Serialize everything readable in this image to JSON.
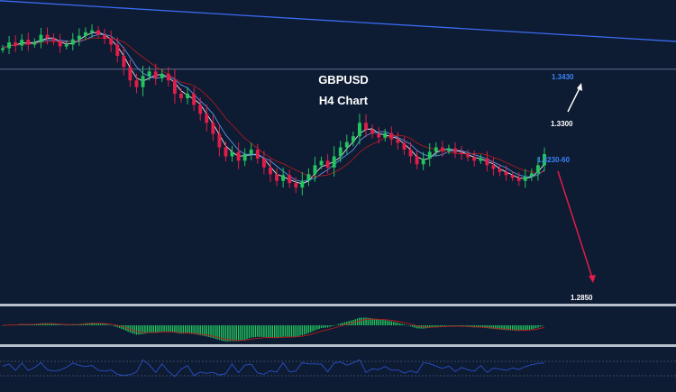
{
  "chart_data": {
    "type": "candlestick",
    "title": "GBPUSD",
    "subtitle": "H4 Chart",
    "colors": {
      "background": "#0d1b33",
      "bull": "#22c55e",
      "bear": "#e11d48",
      "trendline": "#3b6cf0",
      "level_line": "#6b7a94",
      "target_label_blue": "#3b82f6",
      "target_label_white": "#ffffff",
      "arrow_up": "#ffffff",
      "arrow_down": "#e11d48",
      "ma_fast": "#ffffff",
      "ma_mid": "#60a5fa",
      "ma_slow": "#b91c1c",
      "panel_separator": "#b8bfcc",
      "rsi_line": "#2b4fc9"
    },
    "price_axis": {
      "min": 1.28,
      "max": 1.348
    },
    "closes": [
      1.3372,
      1.3385,
      1.3378,
      1.3391,
      1.338,
      1.3386,
      1.3402,
      1.3395,
      1.3388,
      1.3376,
      1.338,
      1.3392,
      1.34,
      1.3408,
      1.3412,
      1.3402,
      1.3393,
      1.338,
      1.3355,
      1.333,
      1.33,
      1.3285,
      1.331,
      1.332,
      1.3305,
      1.3315,
      1.33,
      1.327,
      1.326,
      1.327,
      1.3245,
      1.3225,
      1.3205,
      1.318,
      1.315,
      1.313,
      1.314,
      1.312,
      1.3135,
      1.3145,
      1.3125,
      1.3105,
      1.309,
      1.3075,
      1.3088,
      1.307,
      1.306,
      1.3075,
      1.309,
      1.311,
      1.312,
      1.3105,
      1.313,
      1.315,
      1.3162,
      1.3175,
      1.3205,
      1.319,
      1.318,
      1.3172,
      1.3182,
      1.3168,
      1.316,
      1.3145,
      1.313,
      1.3112,
      1.3125,
      1.314,
      1.315,
      1.3142,
      1.3148,
      1.3138,
      1.3135,
      1.3128,
      1.312,
      1.3126,
      1.311,
      1.3102,
      1.3095,
      1.3088,
      1.3082,
      1.3075,
      1.3084,
      1.3092,
      1.311,
      1.3135
    ],
    "levels": [
      1.3325
    ],
    "trendline": {
      "from": [
        0,
        1.3478
      ],
      "to": [
        85,
        1.3405
      ]
    },
    "targets": [
      {
        "label": "1.3430",
        "color": "blue"
      },
      {
        "label": "1.3300",
        "color": "white"
      },
      {
        "label": "1.3230-60",
        "color": "blue"
      },
      {
        "label": "1.2850",
        "color": "white"
      }
    ],
    "indicator_panels": [
      "macd_histogram",
      "rsi"
    ]
  }
}
